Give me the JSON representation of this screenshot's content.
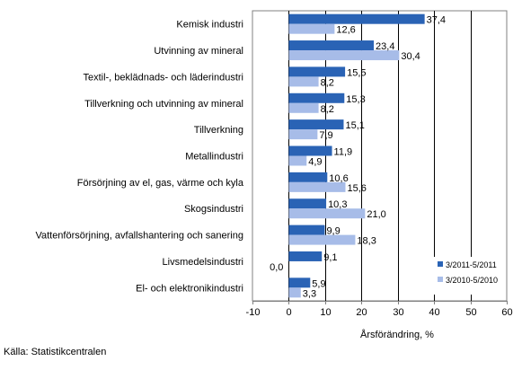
{
  "chart_data": {
    "type": "bar",
    "orientation": "horizontal",
    "categories": [
      "Kemisk industri",
      "Utvinning av mineral",
      "Textil-, beklädnads- och läderindustri",
      "Tillverkning och utvinning av mineral",
      "Tillverkning",
      "Metallindustri",
      "Försörjning av el, gas, värme och kyla",
      "Skogsindustri",
      "Vattenförsörjning, avfallshantering och sanering",
      "Livsmedelsindustri",
      "El- och elektronikindustri"
    ],
    "series": [
      {
        "name": "3/2011-5/2011",
        "color": "#2a63b5",
        "values": [
          37.4,
          23.4,
          15.5,
          15.3,
          15.1,
          11.9,
          10.6,
          10.3,
          9.9,
          9.1,
          5.9
        ],
        "labels": [
          "37,4",
          "23,4",
          "15,5",
          "15,3",
          "15,1",
          "11,9",
          "10,6",
          "10,3",
          "9,9",
          "9,1",
          "5,9"
        ]
      },
      {
        "name": "3/2010-5/2010",
        "color": "#a7bce8",
        "values": [
          12.6,
          30.4,
          8.2,
          8.2,
          7.9,
          4.9,
          15.6,
          21.0,
          18.3,
          0.0,
          3.3
        ],
        "labels": [
          "12,6",
          "30,4",
          "8,2",
          "8,2",
          "7,9",
          "4,9",
          "15,6",
          "21,0",
          "18,3",
          "0,0",
          "3,3"
        ]
      }
    ],
    "xlim": [
      -10,
      60
    ],
    "xticks": [
      "-10",
      "0",
      "10",
      "20",
      "30",
      "40",
      "50",
      "60"
    ],
    "xtick_values": [
      -10,
      0,
      10,
      20,
      30,
      40,
      50,
      60
    ],
    "xlabel": "Årsförändring, %",
    "legend_placement": "bottom-right",
    "grid": true
  },
  "source": "Källa: Statistikcentralen"
}
